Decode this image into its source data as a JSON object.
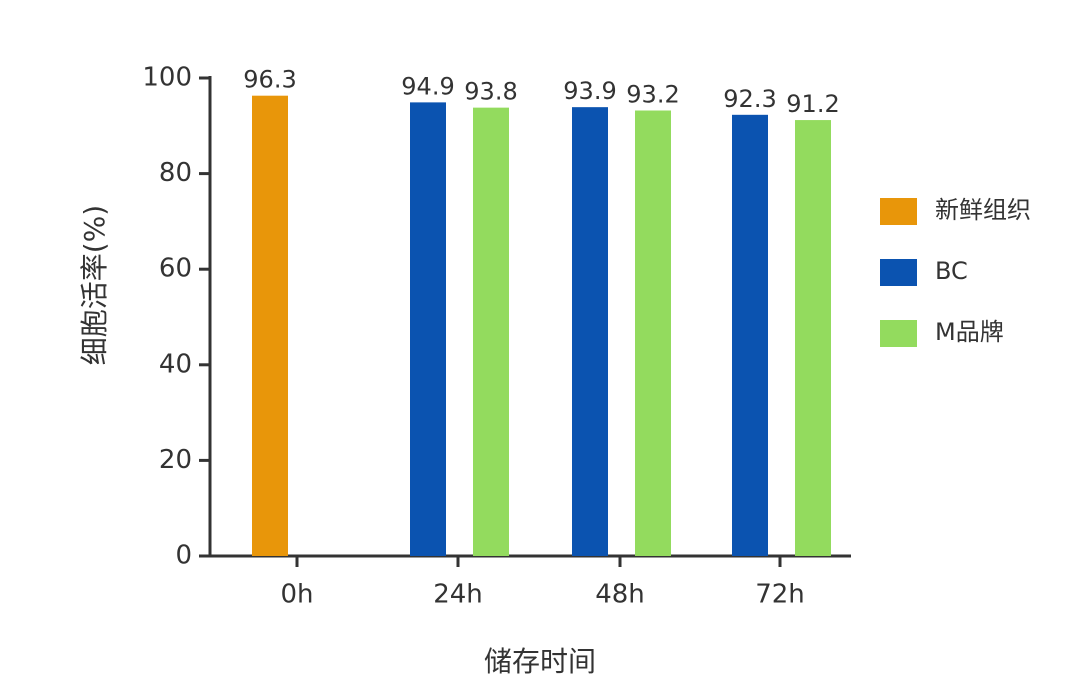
{
  "chart_data": {
    "type": "bar",
    "x_label": "储存时间",
    "y_label": "细胞活率(%)",
    "categories": [
      "0h",
      "24h",
      "48h",
      "72h"
    ],
    "series": [
      {
        "name": "新鲜组织",
        "color": "#e8960a",
        "values": [
          96.3,
          null,
          null,
          null
        ]
      },
      {
        "name": "BC",
        "color": "#0b53b0",
        "values": [
          null,
          94.9,
          93.9,
          92.3
        ]
      },
      {
        "name": "M品牌",
        "color": "#93db5e",
        "values": [
          null,
          93.8,
          93.2,
          91.2
        ]
      }
    ],
    "ylim": [
      0,
      100
    ],
    "yticks": [
      0,
      20,
      40,
      60,
      80,
      100
    ],
    "legend": "right"
  }
}
